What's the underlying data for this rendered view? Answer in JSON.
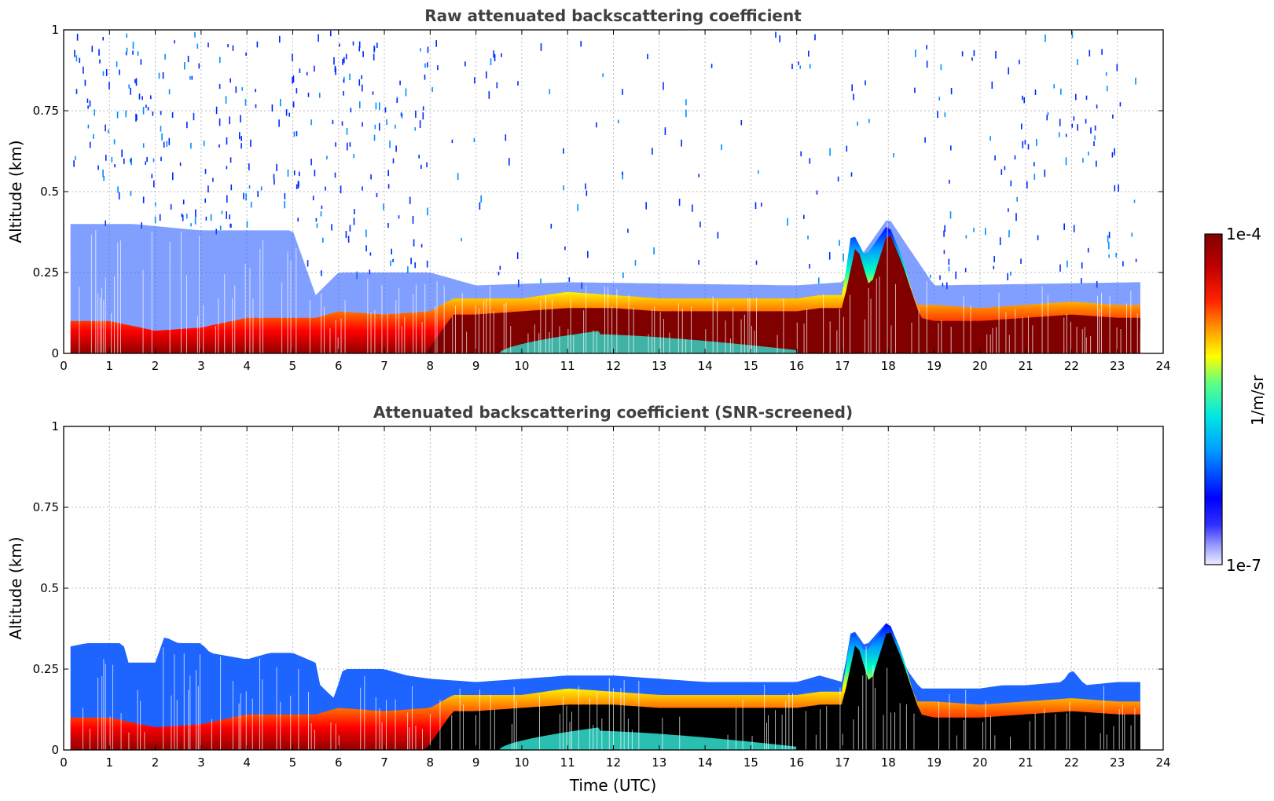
{
  "chart_data": [
    {
      "type": "heatmap",
      "title": "Raw attenuated backscattering coefficient",
      "xlabel": "",
      "ylabel": "Altitude (km)",
      "xlim": [
        0,
        24
      ],
      "ylim": [
        0,
        1
      ],
      "x_ticks": [
        0,
        1,
        2,
        3,
        4,
        5,
        6,
        7,
        8,
        9,
        10,
        11,
        12,
        13,
        14,
        15,
        16,
        17,
        18,
        19,
        20,
        21,
        22,
        23,
        24
      ],
      "x_tick_labels": [
        "0",
        "1",
        "2",
        "3",
        "4",
        "5",
        "6",
        "7",
        "8",
        "9",
        "10",
        "11",
        "12",
        "13",
        "14",
        "15",
        "16",
        "17",
        "18",
        "19",
        "20",
        "21",
        "22",
        "23",
        "24"
      ],
      "y_ticks": [
        0,
        0.25,
        0.5,
        0.75,
        1
      ],
      "y_tick_labels": [
        "0",
        "0.25",
        "0.5",
        "0.75",
        "1"
      ],
      "grid": true,
      "data_extent_hours": [
        0.15,
        23.5
      ],
      "layer_top_km": {
        "x": [
          0.15,
          1,
          2,
          3,
          4,
          5,
          5.5,
          6,
          7,
          8,
          8.5,
          9,
          10,
          11,
          12,
          13,
          14,
          15,
          16,
          16.5,
          17,
          17.2,
          17.5,
          18,
          18.3,
          18.6,
          19,
          20,
          21,
          22,
          23,
          23.5
        ],
        "y": [
          0.1,
          0.1,
          0.07,
          0.08,
          0.11,
          0.11,
          0.11,
          0.13,
          0.12,
          0.13,
          0.17,
          0.17,
          0.17,
          0.19,
          0.18,
          0.17,
          0.17,
          0.17,
          0.17,
          0.18,
          0.18,
          0.38,
          0.3,
          0.4,
          0.3,
          0.15,
          0.15,
          0.14,
          0.15,
          0.16,
          0.15,
          0.15
        ]
      },
      "dense_layer_top_km": {
        "x": [
          0.15,
          5,
          6,
          7,
          7.9,
          8.5,
          9,
          10,
          11,
          12,
          13,
          14,
          15,
          16,
          16.5,
          17,
          17.3,
          17.6,
          18,
          18.3,
          18.7,
          19,
          20,
          21,
          22,
          23,
          23.5
        ],
        "y": [
          0.0,
          0.0,
          0.0,
          0.0,
          0.0,
          0.12,
          0.12,
          0.13,
          0.14,
          0.14,
          0.13,
          0.13,
          0.13,
          0.13,
          0.14,
          0.14,
          0.34,
          0.2,
          0.38,
          0.28,
          0.11,
          0.1,
          0.1,
          0.11,
          0.12,
          0.11,
          0.11
        ]
      },
      "noise_top_km": {
        "x": [
          0.15,
          1.5,
          3,
          5,
          5.5,
          6,
          7,
          8,
          9,
          11,
          16,
          17,
          18,
          19,
          23.5
        ],
        "y": [
          0.4,
          0.4,
          0.38,
          0.38,
          0.18,
          0.25,
          0.25,
          0.25,
          0.21,
          0.22,
          0.21,
          0.22,
          0.42,
          0.21,
          0.22
        ]
      },
      "near_ground_return": {
        "x_range": [
          9.5,
          16
        ],
        "peak_hour": 11.7,
        "peak_km": 0.07
      }
    },
    {
      "type": "heatmap",
      "title": "Attenuated backscattering coefficient (SNR-screened)",
      "xlabel": "Time (UTC)",
      "ylabel": "Altitude (km)",
      "xlim": [
        0,
        24
      ],
      "ylim": [
        0,
        1
      ],
      "x_ticks": [
        0,
        1,
        2,
        3,
        4,
        5,
        6,
        7,
        8,
        9,
        10,
        11,
        12,
        13,
        14,
        15,
        16,
        17,
        18,
        19,
        20,
        21,
        22,
        23,
        24
      ],
      "x_tick_labels": [
        "0",
        "1",
        "2",
        "3",
        "4",
        "5",
        "6",
        "7",
        "8",
        "9",
        "10",
        "11",
        "12",
        "13",
        "14",
        "15",
        "16",
        "17",
        "18",
        "19",
        "20",
        "21",
        "22",
        "23",
        "24"
      ],
      "y_ticks": [
        0,
        0.25,
        0.5,
        0.75,
        1
      ],
      "y_tick_labels": [
        "0",
        "0.25",
        "0.5",
        "0.75",
        "1"
      ],
      "grid": true,
      "data_extent_hours": [
        0.15,
        23.5
      ],
      "screened_top_km": {
        "x": [
          0.15,
          0.5,
          1,
          1.3,
          1.4,
          2,
          2.2,
          2.5,
          3,
          3.2,
          4,
          4.5,
          5,
          5.5,
          5.6,
          5.9,
          6.1,
          7,
          7.5,
          8,
          9,
          10,
          11,
          12,
          13,
          14,
          15,
          16,
          16.5,
          17,
          17.2,
          17.5,
          18,
          18.4,
          18.7,
          19,
          20,
          20.5,
          21,
          21.8,
          22,
          22.3,
          23,
          23.5
        ],
        "y": [
          0.32,
          0.33,
          0.33,
          0.33,
          0.27,
          0.27,
          0.35,
          0.33,
          0.33,
          0.3,
          0.28,
          0.3,
          0.3,
          0.27,
          0.2,
          0.16,
          0.25,
          0.25,
          0.23,
          0.22,
          0.21,
          0.22,
          0.23,
          0.23,
          0.22,
          0.21,
          0.21,
          0.21,
          0.23,
          0.21,
          0.38,
          0.32,
          0.4,
          0.25,
          0.19,
          0.19,
          0.19,
          0.2,
          0.2,
          0.21,
          0.25,
          0.2,
          0.21,
          0.21
        ]
      },
      "layer_top_km": {
        "x": [
          0.15,
          1,
          2,
          3,
          4,
          5,
          5.5,
          6,
          7,
          8,
          8.5,
          9,
          10,
          11,
          12,
          13,
          14,
          15,
          16,
          16.5,
          17,
          17.2,
          17.5,
          18,
          18.3,
          18.6,
          19,
          20,
          21,
          22,
          23,
          23.5
        ],
        "y": [
          0.1,
          0.1,
          0.07,
          0.08,
          0.11,
          0.11,
          0.11,
          0.13,
          0.12,
          0.13,
          0.17,
          0.17,
          0.17,
          0.19,
          0.18,
          0.17,
          0.17,
          0.17,
          0.17,
          0.18,
          0.18,
          0.38,
          0.3,
          0.4,
          0.3,
          0.15,
          0.15,
          0.14,
          0.15,
          0.16,
          0.15,
          0.15
        ]
      },
      "dense_layer_top_km": {
        "x": [
          0.15,
          5,
          6,
          7,
          7.9,
          8.5,
          9,
          10,
          11,
          12,
          13,
          14,
          15,
          16,
          16.5,
          17,
          17.3,
          17.6,
          18,
          18.3,
          18.7,
          19,
          20,
          21,
          22,
          23,
          23.5
        ],
        "y": [
          0.0,
          0.0,
          0.0,
          0.0,
          0.0,
          0.12,
          0.12,
          0.13,
          0.14,
          0.14,
          0.13,
          0.13,
          0.13,
          0.13,
          0.14,
          0.14,
          0.34,
          0.2,
          0.38,
          0.28,
          0.11,
          0.1,
          0.1,
          0.11,
          0.12,
          0.11,
          0.11
        ]
      },
      "near_ground_return": {
        "x_range": [
          9.5,
          16
        ],
        "peak_hour": 11.7,
        "peak_km": 0.07
      }
    }
  ],
  "colorbar": {
    "label": "1/m/sr",
    "max_label": "1e-4",
    "min_label": "1e-7",
    "colors": [
      "#eeeeff",
      "#c8c8ff",
      "#9696ff",
      "#5a5aff",
      "#0000ff",
      "#0050ff",
      "#00a0ff",
      "#00e0ff",
      "#00ffc0",
      "#60ff80",
      "#b0ff40",
      "#ffff00",
      "#ffc000",
      "#ff8000",
      "#ff4000",
      "#ff0000",
      "#d00000",
      "#a00000",
      "#800000"
    ]
  }
}
